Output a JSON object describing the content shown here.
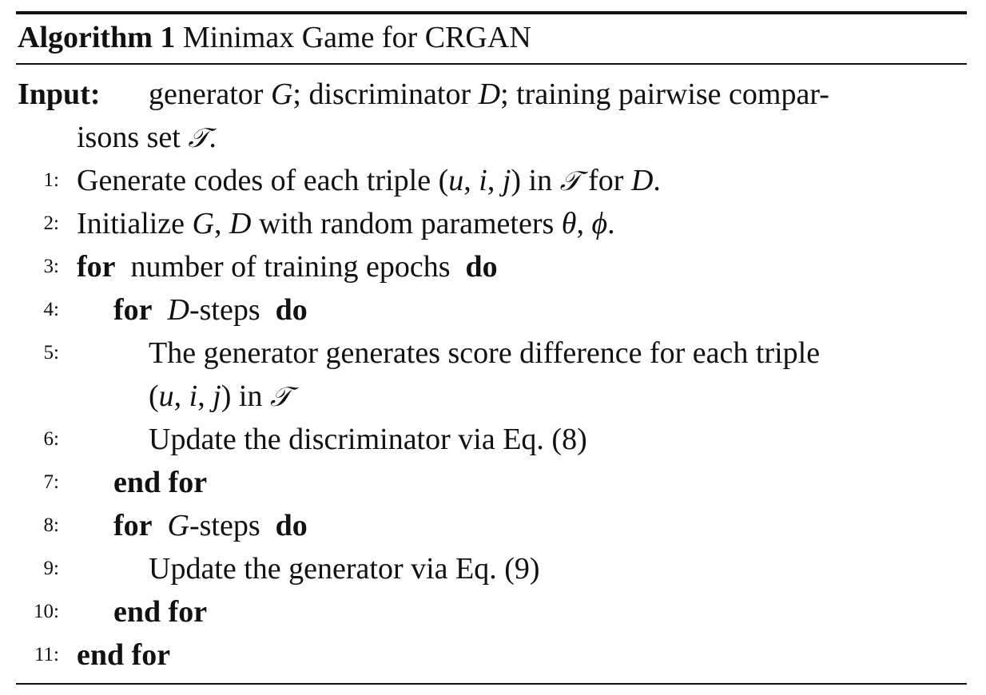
{
  "algorithm": {
    "label": "Algorithm 1",
    "title": "Minimax Game for CRGAN"
  },
  "input": {
    "label": "Input:",
    "line1": "generator G; discriminator D; training pairwise compar-",
    "line2": "isons set 𝒯."
  },
  "steps": [
    {
      "num": "1:",
      "text": "Generate codes of each triple (u, i, j) in 𝒯 for D."
    },
    {
      "num": "2:",
      "text": "Initialize G, D with random parameters θ, ϕ."
    },
    {
      "num": "3:",
      "kw_start": "for",
      "text": "number of training epochs",
      "kw_end": "do"
    },
    {
      "num": "4:",
      "kw_start": "for",
      "text": "D-steps",
      "kw_end": "do"
    },
    {
      "num": "5:",
      "text": "The generator generates score difference for each triple",
      "text_cont": "(u, i, j) in 𝒯"
    },
    {
      "num": "6:",
      "text": "Update the discriminator via Eq. (8)"
    },
    {
      "num": "7:",
      "kw": "end for"
    },
    {
      "num": "8:",
      "kw_start": "for",
      "text": "G-steps",
      "kw_end": "do"
    },
    {
      "num": "9:",
      "text": "Update the generator via Eq. (9)"
    },
    {
      "num": "10:",
      "kw": "end for"
    },
    {
      "num": "11:",
      "kw": "end for"
    }
  ]
}
